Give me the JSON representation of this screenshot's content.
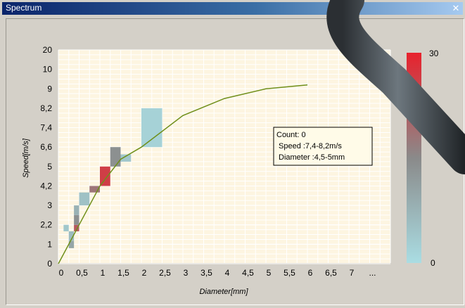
{
  "window": {
    "title": "Spectrum",
    "close_glyph": "✕"
  },
  "colors": {
    "plot_bg": "#fdf5e1",
    "grid": "#ffffff",
    "fit_line": "#6f8f1a",
    "low": "#aadde3",
    "mid": "#8a8a8a",
    "high": "#e8222d"
  },
  "chart_data": {
    "type": "heatmap",
    "title": "",
    "xlabel": "Diameter[mm]",
    "ylabel": "Speed[m/s]",
    "x_ticks": [
      "0",
      "0,5",
      "1",
      "1,5",
      "2",
      "2,5",
      "3",
      "3,5",
      "4",
      "4,5",
      "5",
      "5,5",
      "6",
      "6,5",
      "7",
      "..."
    ],
    "y_ticks": [
      "0",
      "1",
      "2,2",
      "3",
      "4,2",
      "5",
      "6,6",
      "7,4",
      "8,2",
      "9",
      "10",
      "20"
    ],
    "colorbar": {
      "min_label": "0",
      "max_label": "30",
      "min": 0,
      "max": 30
    },
    "cells": [
      {
        "x": [
          0.125,
          0.25
        ],
        "y": [
          1.8,
          2.2
        ],
        "v": 4
      },
      {
        "x": [
          0.25,
          0.375
        ],
        "y": [
          0.8,
          1.2
        ],
        "v": 10
      },
      {
        "x": [
          0.25,
          0.375
        ],
        "y": [
          1.2,
          1.8
        ],
        "v": 6
      },
      {
        "x": [
          0.375,
          0.5
        ],
        "y": [
          1.8,
          2.2
        ],
        "v": 22
      },
      {
        "x": [
          0.375,
          0.5
        ],
        "y": [
          2.2,
          2.6
        ],
        "v": 14
      },
      {
        "x": [
          0.375,
          0.5
        ],
        "y": [
          2.6,
          3.0
        ],
        "v": 8
      },
      {
        "x": [
          0.5,
          0.75
        ],
        "y": [
          3.0,
          3.8
        ],
        "v": 5
      },
      {
        "x": [
          0.75,
          1.0
        ],
        "y": [
          3.8,
          4.2
        ],
        "v": 18
      },
      {
        "x": [
          1.0,
          1.25
        ],
        "y": [
          4.2,
          5.0
        ],
        "v": 26
      },
      {
        "x": [
          1.25,
          1.5
        ],
        "y": [
          5.0,
          6.6
        ],
        "v": 14
      },
      {
        "x": [
          1.5,
          1.75
        ],
        "y": [
          5.4,
          6.0
        ],
        "v": 4
      },
      {
        "x": [
          2.0,
          2.5
        ],
        "y": [
          6.6,
          8.2
        ],
        "v": 2
      }
    ],
    "fit_curve": [
      [
        0,
        0
      ],
      [
        0.5,
        2.2
      ],
      [
        1,
        4.2
      ],
      [
        1.5,
        5.6
      ],
      [
        2,
        6.6
      ],
      [
        3,
        7.9
      ],
      [
        4,
        8.6
      ],
      [
        5,
        9.0
      ],
      [
        6,
        9.2
      ]
    ],
    "tooltip": [
      "Count: 0",
      "Speed :7,4-8,2m/s",
      "Diameter :4,5-5mm"
    ],
    "grid": true
  }
}
